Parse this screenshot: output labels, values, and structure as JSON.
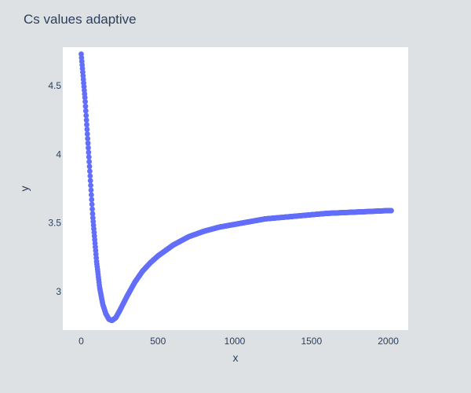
{
  "chart_data": {
    "type": "scatter",
    "title": "Cs values adaptive",
    "xlabel": "x",
    "ylabel": "y",
    "xlim": [
      -120,
      2130
    ],
    "ylim": [
      2.72,
      4.78
    ],
    "grid": false,
    "legend": false,
    "colors": {
      "paper_bg": "#dde1e3",
      "plot_bg": "#ffffff",
      "marker": "#636efa",
      "text": "#2a3f5f"
    },
    "x_ticks": [
      {
        "value": 0,
        "label": "0"
      },
      {
        "value": 500,
        "label": "500"
      },
      {
        "value": 1000,
        "label": "1000"
      },
      {
        "value": 1500,
        "label": "1500"
      },
      {
        "value": 2000,
        "label": "2000"
      }
    ],
    "y_ticks": [
      {
        "value": 3,
        "label": "3"
      },
      {
        "value": 3.5,
        "label": "3.5"
      },
      {
        "value": 4,
        "label": "4"
      },
      {
        "value": 4.5,
        "label": "4.5"
      }
    ],
    "series": [
      {
        "x": [
          0,
          25,
          50,
          75,
          100,
          120,
          140,
          160,
          180,
          200,
          225,
          250,
          300,
          350,
          400,
          450,
          500,
          600,
          700,
          800,
          900,
          1000,
          1100,
          1200,
          1300,
          1400,
          1500,
          1600,
          1700,
          1800,
          1900,
          2000,
          2020
        ],
        "y": [
          4.73,
          4.4,
          3.98,
          3.55,
          3.22,
          3.03,
          2.91,
          2.84,
          2.8,
          2.79,
          2.81,
          2.86,
          2.97,
          3.07,
          3.15,
          3.21,
          3.26,
          3.34,
          3.4,
          3.44,
          3.47,
          3.49,
          3.51,
          3.53,
          3.54,
          3.55,
          3.56,
          3.57,
          3.575,
          3.58,
          3.585,
          3.59,
          3.59
        ]
      }
    ]
  }
}
